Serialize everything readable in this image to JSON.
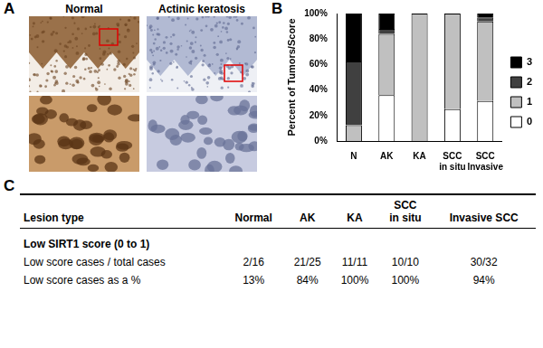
{
  "panel_a": {
    "label": "A",
    "images": [
      "Normal",
      "Actinic keratosis"
    ]
  },
  "panel_b": {
    "label": "B"
  },
  "chart_data": {
    "type": "bar",
    "categories": [
      "N",
      "AK",
      "KA",
      [
        "SCC",
        "in situ"
      ],
      [
        "SCC",
        "Invasive"
      ]
    ],
    "series": [
      {
        "name": "0",
        "color": "#ffffff",
        "values": [
          0,
          36,
          0,
          25,
          31.3
        ]
      },
      {
        "name": "1",
        "color": "#c0c0c0",
        "values": [
          12.5,
          48,
          100,
          75,
          62.5
        ]
      },
      {
        "name": "2",
        "color": "#404040",
        "values": [
          50,
          4,
          0,
          0,
          3.1
        ]
      },
      {
        "name": "3",
        "color": "#000000",
        "values": [
          37.5,
          12,
          0,
          0,
          3.1
        ]
      }
    ],
    "ylabel": "Percent of Tumors/Score",
    "ylim": [
      0,
      100
    ],
    "yticks": [
      {
        "value": 0,
        "label": "0%"
      },
      {
        "value": 20,
        "label": "20%"
      },
      {
        "value": 40,
        "label": "40%"
      },
      {
        "value": 60,
        "label": "60%"
      },
      {
        "value": 80,
        "label": "80%"
      },
      {
        "value": 100,
        "label": "100%"
      }
    ],
    "stacked": true,
    "grid": false,
    "legend": "right"
  },
  "panel_c": {
    "label": "C",
    "table": {
      "header": [
        "Lesion type",
        "Normal",
        "AK",
        "KA",
        [
          "SCC",
          "in situ"
        ],
        "Invasive SCC"
      ],
      "section": "Low SIRT1 score (0 to 1)",
      "rows": [
        [
          "Low score cases / total cases",
          "2/16",
          "21/25",
          "11/11",
          "10/10",
          "30/32"
        ],
        [
          "Low score cases as a %",
          "13%",
          "84%",
          "100%",
          "100%",
          "94%"
        ]
      ]
    }
  }
}
